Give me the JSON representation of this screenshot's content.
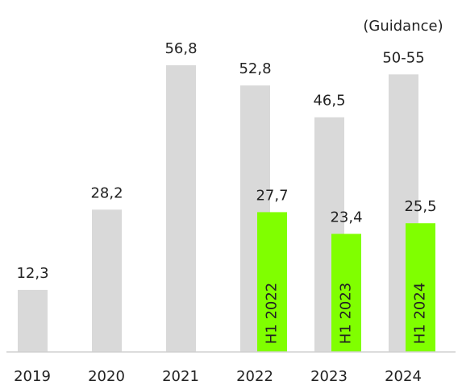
{
  "chart_data": {
    "type": "bar",
    "annotation": "(Guidance)",
    "categories": [
      "2019",
      "2020",
      "2021",
      "2022",
      "2023",
      "2024"
    ],
    "ylim": [
      0,
      60
    ],
    "series": [
      {
        "color": "#d9d9d9",
        "values": [
          12.3,
          28.2,
          56.8,
          52.8,
          46.5,
          55
        ],
        "value_labels": [
          "12,3",
          "28,2",
          "56,8",
          "52,8",
          "46,5",
          "50-55"
        ]
      },
      {
        "color": "#80ff00",
        "values": [
          null,
          null,
          null,
          27.7,
          23.4,
          25.5
        ],
        "value_labels": [
          null,
          null,
          null,
          "27,7",
          "23,4",
          "25,5"
        ],
        "bar_labels": [
          null,
          null,
          null,
          "H1 2022",
          "H1 2023",
          "H1 2024"
        ]
      }
    ]
  }
}
